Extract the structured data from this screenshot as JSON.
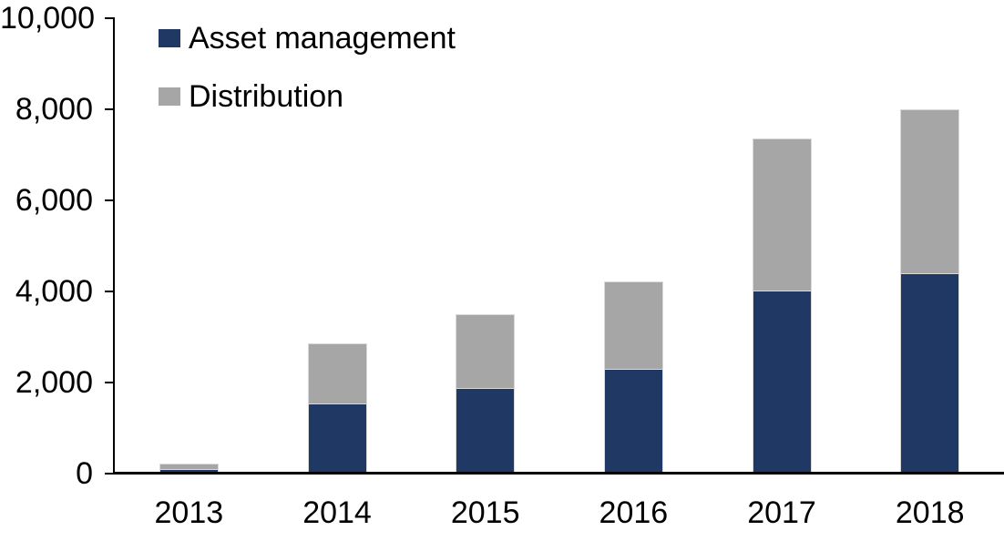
{
  "chart_data": {
    "type": "bar",
    "stacked": true,
    "title": "",
    "xlabel": "",
    "ylabel": "",
    "categories": [
      "2013",
      "2014",
      "2015",
      "2016",
      "2017",
      "2018"
    ],
    "series": [
      {
        "name": "Asset management",
        "color": "#1F3864",
        "values": [
          100,
          1540,
          1880,
          2300,
          4030,
          4400
        ]
      },
      {
        "name": "Distribution",
        "color": "#A6A6A6",
        "values": [
          120,
          1320,
          1620,
          1930,
          3340,
          3600
        ]
      }
    ],
    "totals": [
      220,
      2860,
      3500,
      4230,
      7370,
      8000
    ],
    "ylim": [
      0,
      10000
    ],
    "ytick_interval": 2000,
    "ytick_labels": [
      "0",
      "2,000",
      "4,000",
      "6,000",
      "8,000",
      "10,000"
    ],
    "grid": false,
    "legend_position": "top-left-inside"
  },
  "colors": {
    "axis": "#000000",
    "background": "#FFFFFF",
    "bar_border": "#D9D9D9",
    "text": "#000000"
  }
}
